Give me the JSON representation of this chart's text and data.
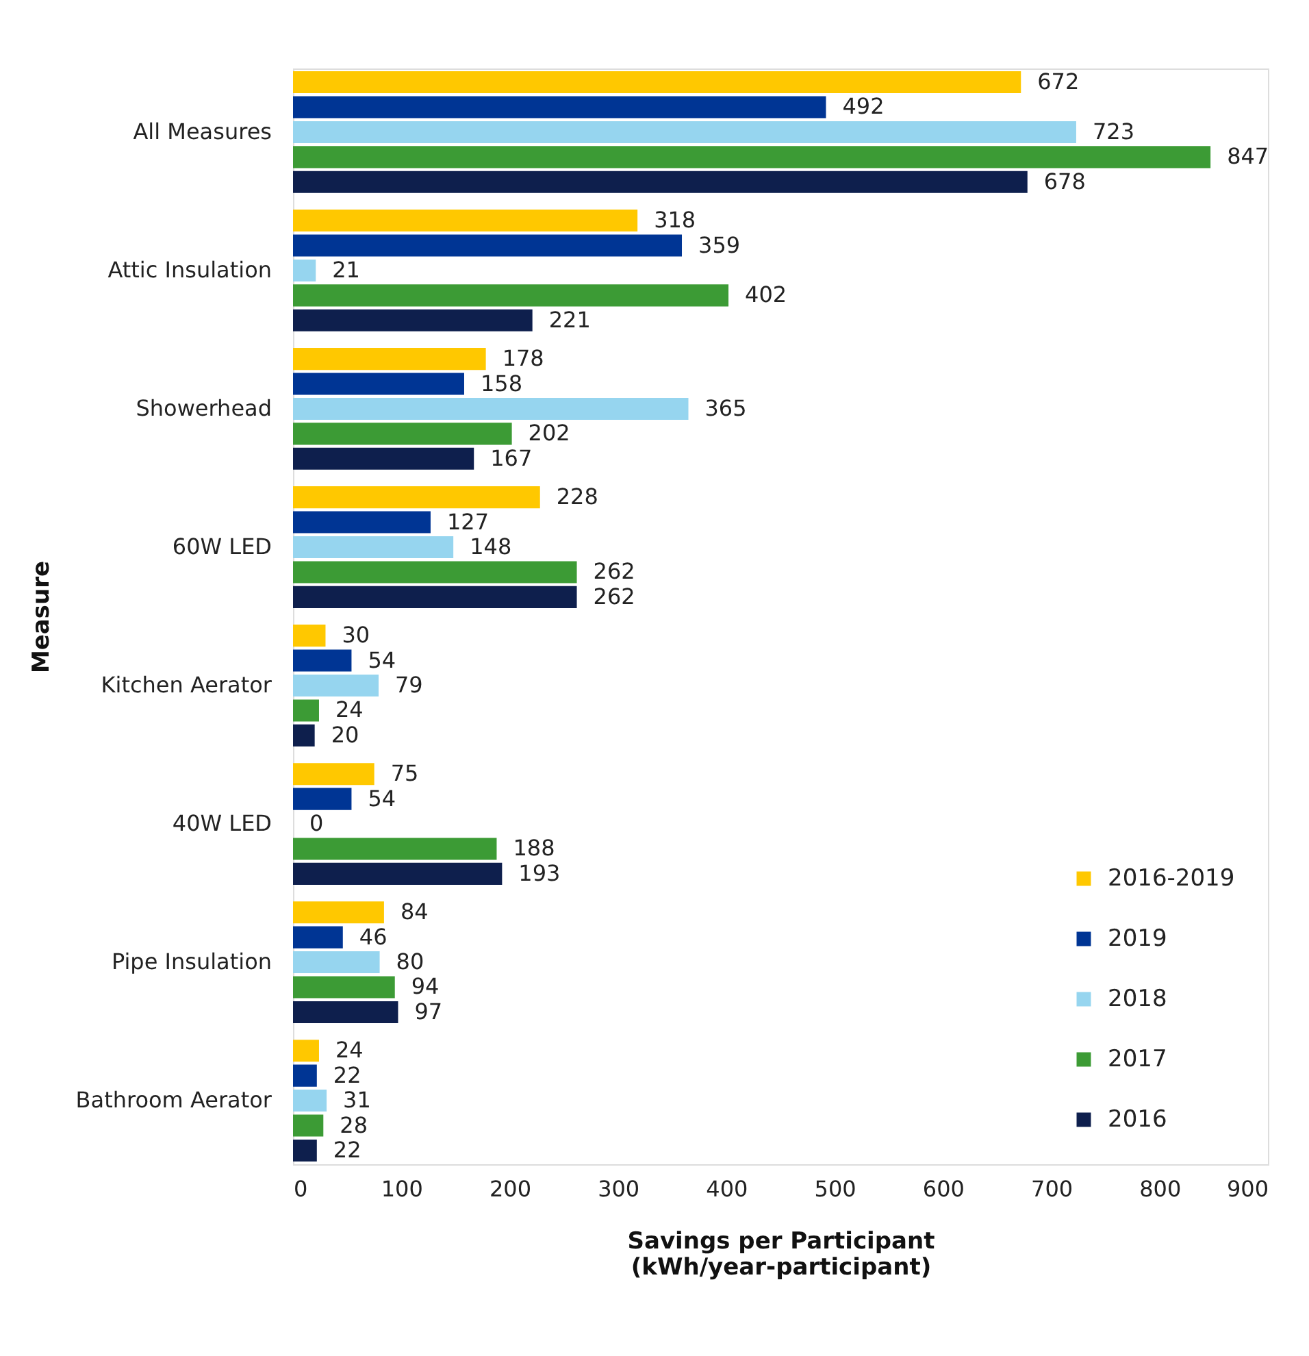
{
  "chart_data": {
    "type": "bar",
    "orientation": "horizontal",
    "categories": [
      "All Measures",
      "Attic Insulation",
      "Showerhead",
      "60W LED",
      "Kitchen Aerator",
      "40W LED",
      "Pipe Insulation",
      "Bathroom Aerator"
    ],
    "series": [
      {
        "name": "2016-2019",
        "color": "#ffc800",
        "values": [
          672,
          318,
          178,
          228,
          30,
          75,
          84,
          24
        ]
      },
      {
        "name": "2019",
        "color": "#003594",
        "values": [
          492,
          359,
          158,
          127,
          54,
          54,
          46,
          22
        ]
      },
      {
        "name": "2018",
        "color": "#96d5ef",
        "values": [
          723,
          21,
          365,
          148,
          79,
          0,
          80,
          31
        ]
      },
      {
        "name": "2017",
        "color": "#3c9b35",
        "values": [
          847,
          402,
          202,
          262,
          24,
          188,
          94,
          28
        ]
      },
      {
        "name": "2016",
        "color": "#0e1f4d",
        "values": [
          678,
          221,
          167,
          262,
          20,
          193,
          97,
          22
        ]
      }
    ],
    "xlabel": "Savings per Participant\n(kWh/year-participant)",
    "ylabel": "Measure",
    "xlim": [
      0,
      900
    ],
    "xticks": [
      0,
      100,
      200,
      300,
      400,
      500,
      600,
      700,
      800,
      900
    ],
    "data_labels": true,
    "legend": "bottom right",
    "grid": false
  }
}
